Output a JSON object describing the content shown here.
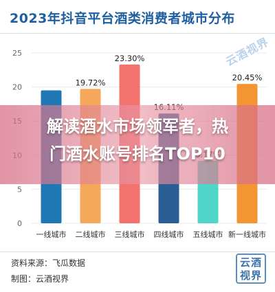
{
  "headline": {
    "line1": "解读酒水市场领军者，热",
    "line2": "门酒水账号排名TOP10"
  },
  "watermark": "云酒视界",
  "footer": {
    "source": "资料来源：飞瓜数据",
    "maker": "制图：云酒视界",
    "logo_text": "云酒视界"
  },
  "chart_data": {
    "type": "bar",
    "title": "2023年抖音平台酒类消费者城市分布",
    "categories": [
      "一线城市",
      "二线城市",
      "三线城市",
      "四线城市",
      "五线城市",
      "新一线城市"
    ],
    "values": [
      19.5,
      19.72,
      23.3,
      16.11,
      9.17,
      20.45
    ],
    "data_labels": [
      "",
      "19.72%",
      "23.30%",
      "16.11%",
      "9.17%",
      "20.45%"
    ],
    "colors": [
      "#1f78b4",
      "#f5a85a",
      "#f2736e",
      "#2c5e96",
      "#4fd6c8",
      "#f39533"
    ],
    "ylim": [
      0,
      25
    ],
    "yticks": [
      "0",
      "5",
      "10",
      "15",
      "20",
      "25"
    ]
  }
}
